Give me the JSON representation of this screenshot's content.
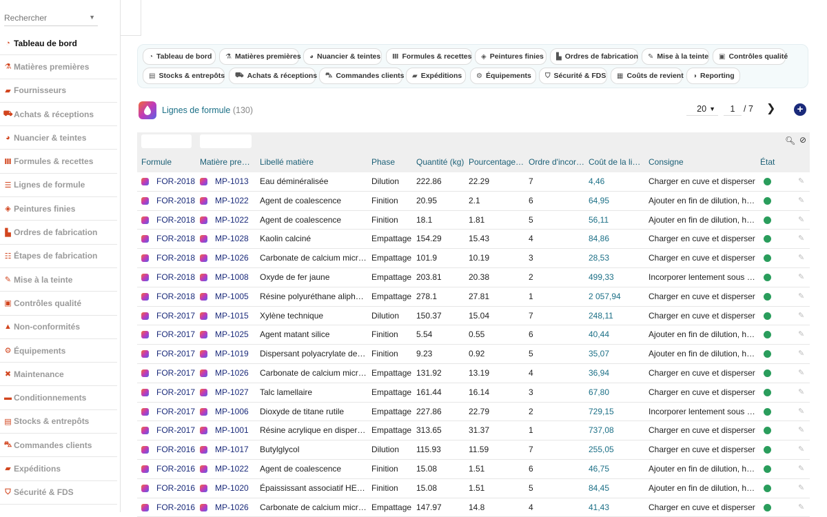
{
  "search": {
    "placeholder": "Rechercher"
  },
  "sidebar": {
    "items": [
      {
        "label": "Tableau de bord",
        "icon": "dashboard-icon",
        "glyph": "◔",
        "active": true
      },
      {
        "label": "Matières premières",
        "icon": "flask-icon",
        "glyph": "⚗"
      },
      {
        "label": "Fournisseurs",
        "icon": "truck-icon",
        "glyph": "▰"
      },
      {
        "label": "Achats & réceptions",
        "icon": "dolly-icon",
        "glyph": "⛟"
      },
      {
        "label": "Nuancier & teintes",
        "icon": "palette-icon",
        "glyph": "◕"
      },
      {
        "label": "Formules & recettes",
        "icon": "vials-icon",
        "glyph": "Ⅲ"
      },
      {
        "label": "Lignes de formule",
        "icon": "list-icon",
        "glyph": "☰"
      },
      {
        "label": "Peintures finies",
        "icon": "paint-bucket-icon",
        "glyph": "◈"
      },
      {
        "label": "Ordres de fabrication",
        "icon": "industry-icon",
        "glyph": "▙"
      },
      {
        "label": "Étapes de fabrication",
        "icon": "list-ordered-icon",
        "glyph": "☷"
      },
      {
        "label": "Mise à la teinte",
        "icon": "eyedropper-icon",
        "glyph": "✎"
      },
      {
        "label": "Contrôles qualité",
        "icon": "clipboard-check-icon",
        "glyph": "▣"
      },
      {
        "label": "Non-conformités",
        "icon": "warning-icon",
        "glyph": "▲"
      },
      {
        "label": "Équipements",
        "icon": "cogs-icon",
        "glyph": "⚙"
      },
      {
        "label": "Maintenance",
        "icon": "tools-icon",
        "glyph": "✖"
      },
      {
        "label": "Conditionnements",
        "icon": "box-icon",
        "glyph": "▬"
      },
      {
        "label": "Stocks & entrepôts",
        "icon": "warehouse-icon",
        "glyph": "▤"
      },
      {
        "label": "Commandes clients",
        "icon": "cart-icon",
        "glyph": "⛍"
      },
      {
        "label": "Expéditions",
        "icon": "shipping-icon",
        "glyph": "▰"
      },
      {
        "label": "Sécurité & FDS",
        "icon": "shield-icon",
        "glyph": "⛉"
      }
    ]
  },
  "shortcuts": [
    {
      "label": "Tableau de bord",
      "icon": "dashboard-icon",
      "glyph": "◔"
    },
    {
      "label": "Matières premières",
      "icon": "flask-icon",
      "glyph": "⚗"
    },
    {
      "label": "Nuancier & teintes",
      "icon": "palette-icon",
      "glyph": "◕"
    },
    {
      "label": "Formules & recettes",
      "icon": "vials-icon",
      "glyph": "Ⅲ"
    },
    {
      "label": "Peintures finies",
      "icon": "paint-bucket-icon",
      "glyph": "◈"
    },
    {
      "label": "Ordres de fabrication",
      "icon": "industry-icon",
      "glyph": "▙"
    },
    {
      "label": "Mise à la teinte",
      "icon": "eyedropper-icon",
      "glyph": "✎"
    },
    {
      "label": "Contrôles qualité",
      "icon": "clipboard-check-icon",
      "glyph": "▣"
    },
    {
      "label": "Stocks & entrepôts",
      "icon": "warehouse-icon",
      "glyph": "▤"
    },
    {
      "label": "Achats & réceptions",
      "icon": "dolly-icon",
      "glyph": "⛟"
    },
    {
      "label": "Commandes clients",
      "icon": "cart-icon",
      "glyph": "⛍"
    },
    {
      "label": "Expéditions",
      "icon": "shipping-icon",
      "glyph": "▰"
    },
    {
      "label": "Équipements",
      "icon": "cogs-icon",
      "glyph": "⚙"
    },
    {
      "label": "Sécurité & FDS",
      "icon": "shield-icon",
      "glyph": "⛉"
    },
    {
      "label": "Coûts de revient",
      "icon": "money-icon",
      "glyph": "▦"
    },
    {
      "label": "Reporting",
      "icon": "pie-chart-icon",
      "glyph": "◑"
    }
  ],
  "page": {
    "title": "Lignes de formule",
    "count": "(130)"
  },
  "pager": {
    "page_size": "20",
    "current_page": "1",
    "total": "/  7"
  },
  "table": {
    "headers": [
      "Formule",
      "Matière pre…",
      "Libellé matière",
      "Phase",
      "Quantité (kg)",
      "Pourcentage…",
      "Ordre d'incor…",
      "Coût de la li…",
      "Consigne",
      "État"
    ],
    "status_color": "#2a9d5c",
    "rows": [
      [
        "FOR-2018",
        "MP-1013",
        "Eau déminéralisée",
        "Dilution",
        "222.86",
        "22.29",
        "7",
        "4,46",
        "Charger en cuve et disperser"
      ],
      [
        "FOR-2018",
        "MP-1022",
        "Agent de coalescence",
        "Finition",
        "20.95",
        "2.1",
        "6",
        "64,95",
        "Ajouter en fin de dilution, ho…"
      ],
      [
        "FOR-2018",
        "MP-1022",
        "Agent de coalescence",
        "Finition",
        "18.1",
        "1.81",
        "5",
        "56,11",
        "Ajouter en fin de dilution, ho…"
      ],
      [
        "FOR-2018",
        "MP-1028",
        "Kaolin calciné",
        "Empattage",
        "154.29",
        "15.43",
        "4",
        "84,86",
        "Charger en cuve et disperser"
      ],
      [
        "FOR-2018",
        "MP-1026",
        "Carbonate de calcium micro…",
        "Empattage",
        "101.9",
        "10.19",
        "3",
        "28,53",
        "Charger en cuve et disperser"
      ],
      [
        "FOR-2018",
        "MP-1008",
        "Oxyde de fer jaune",
        "Empattage",
        "203.81",
        "20.38",
        "2",
        "499,33",
        "Incorporer lentement sous a…"
      ],
      [
        "FOR-2018",
        "MP-1005",
        "Résine polyuréthane aliphat…",
        "Empattage",
        "278.1",
        "27.81",
        "1",
        "2 057,94",
        "Charger en cuve et disperser"
      ],
      [
        "FOR-2017",
        "MP-1015",
        "Xylène technique",
        "Dilution",
        "150.37",
        "15.04",
        "7",
        "248,11",
        "Charger en cuve et disperser"
      ],
      [
        "FOR-2017",
        "MP-1025",
        "Agent matant silice",
        "Finition",
        "5.54",
        "0.55",
        "6",
        "40,44",
        "Ajouter en fin de dilution, ho…"
      ],
      [
        "FOR-2017",
        "MP-1019",
        "Dispersant polyacrylate de s…",
        "Finition",
        "9.23",
        "0.92",
        "5",
        "35,07",
        "Ajouter en fin de dilution, ho…"
      ],
      [
        "FOR-2017",
        "MP-1026",
        "Carbonate de calcium micro…",
        "Empattage",
        "131.92",
        "13.19",
        "4",
        "36,94",
        "Charger en cuve et disperser"
      ],
      [
        "FOR-2017",
        "MP-1027",
        "Talc lamellaire",
        "Empattage",
        "161.44",
        "16.14",
        "3",
        "67,80",
        "Charger en cuve et disperser"
      ],
      [
        "FOR-2017",
        "MP-1006",
        "Dioxyde de titane rutile",
        "Empattage",
        "227.86",
        "22.79",
        "2",
        "729,15",
        "Incorporer lentement sous a…"
      ],
      [
        "FOR-2017",
        "MP-1001",
        "Résine acrylique en dispersi…",
        "Empattage",
        "313.65",
        "31.37",
        "1",
        "737,08",
        "Charger en cuve et disperser"
      ],
      [
        "FOR-2016",
        "MP-1017",
        "Butylglycol",
        "Dilution",
        "115.93",
        "11.59",
        "7",
        "255,05",
        "Charger en cuve et disperser"
      ],
      [
        "FOR-2016",
        "MP-1022",
        "Agent de coalescence",
        "Finition",
        "15.08",
        "1.51",
        "6",
        "46,75",
        "Ajouter en fin de dilution, ho…"
      ],
      [
        "FOR-2016",
        "MP-1020",
        "Épaississant associatif HEUR",
        "Finition",
        "15.08",
        "1.51",
        "5",
        "84,45",
        "Ajouter en fin de dilution, ho…"
      ],
      [
        "FOR-2016",
        "MP-1026",
        "Carbonate de calcium micro…",
        "Empattage",
        "147.97",
        "14.8",
        "4",
        "41,43",
        "Charger en cuve et disperser"
      ]
    ]
  }
}
